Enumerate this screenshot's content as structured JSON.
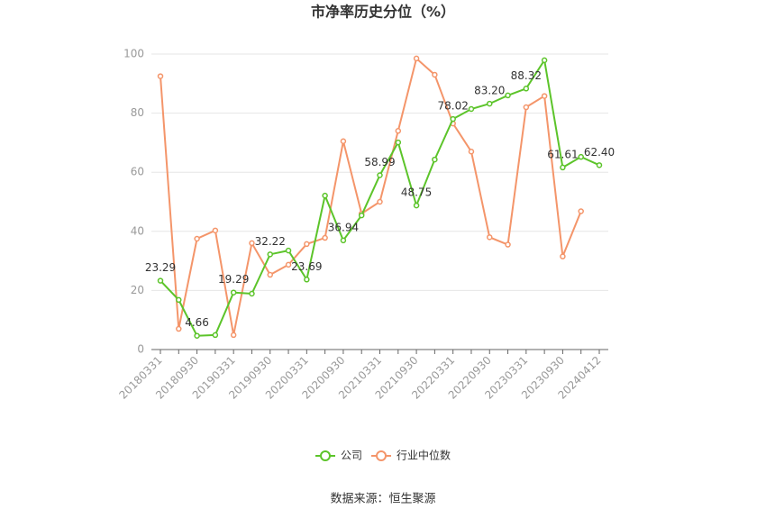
{
  "chart_data": {
    "type": "line",
    "title": "市净率历史分位（%）",
    "categories": [
      "20180331",
      null,
      "20180930",
      null,
      "20190331",
      null,
      "20190930",
      null,
      "20200331",
      null,
      "20200930",
      null,
      "20210331",
      null,
      "20210930",
      null,
      "20220331",
      null,
      "20220930",
      null,
      "20230331",
      null,
      "20230930",
      null,
      "20240412"
    ],
    "series": [
      {
        "name": "公司",
        "color": "#5cc42a",
        "values": [
          23.29,
          16.8,
          4.66,
          4.9,
          19.29,
          18.9,
          32.22,
          33.5,
          23.69,
          52.1,
          36.94,
          45.4,
          58.99,
          70.1,
          48.75,
          64.3,
          78.02,
          81.4,
          83.2,
          86.0,
          88.32,
          97.9,
          61.61,
          65.2,
          62.4
        ],
        "value_labels": [
          "23.29",
          null,
          "4.66",
          null,
          "19.29",
          null,
          "32.22",
          null,
          "23.69",
          null,
          "36.94",
          null,
          "58.99",
          null,
          "48.75",
          null,
          "78.02",
          null,
          "83.20",
          null,
          "88.32",
          null,
          "61.61",
          null,
          "62.40"
        ]
      },
      {
        "name": "行业中位数",
        "color": "#f4956a",
        "values": [
          92.5,
          7.0,
          37.5,
          40.3,
          4.9,
          36.0,
          25.3,
          28.7,
          35.7,
          37.8,
          70.5,
          46.0,
          50.0,
          74.0,
          98.5,
          93.0,
          76.5,
          67.0,
          38.0,
          35.5,
          82.0,
          85.8,
          31.5,
          46.8,
          null
        ]
      }
    ],
    "ylim": [
      0,
      100
    ],
    "yticks": [
      0,
      20,
      40,
      60,
      80,
      100
    ],
    "grid": true,
    "legend": "bottom",
    "source": "数据来源：恒生聚源"
  }
}
